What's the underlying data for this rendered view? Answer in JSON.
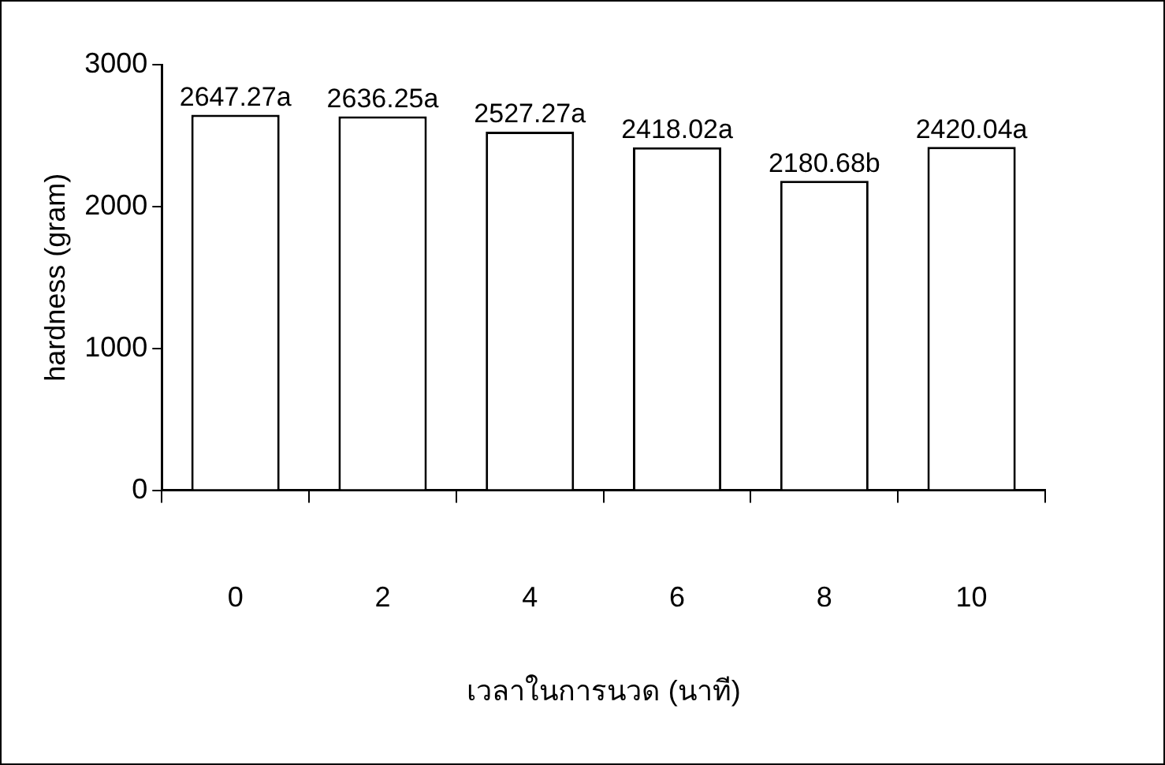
{
  "chart_data": {
    "type": "bar",
    "xlabel": "เวลาในการนวด (นาที)",
    "ylabel": "hardness (gram)",
    "categories": [
      "0",
      "2",
      "4",
      "6",
      "8",
      "10"
    ],
    "values": [
      2647.27,
      2636.25,
      2527.27,
      2418.02,
      2180.68,
      2420.04
    ],
    "value_labels": [
      "2647.27a",
      "2636.25a",
      "2527.27a",
      "2418.02a",
      "2180.68b",
      "2420.04a"
    ],
    "color": "#ffffff",
    "ylim": [
      0,
      3000
    ],
    "yticks": [
      0,
      1000,
      2000,
      3000
    ],
    "grid": false,
    "legend": false
  }
}
